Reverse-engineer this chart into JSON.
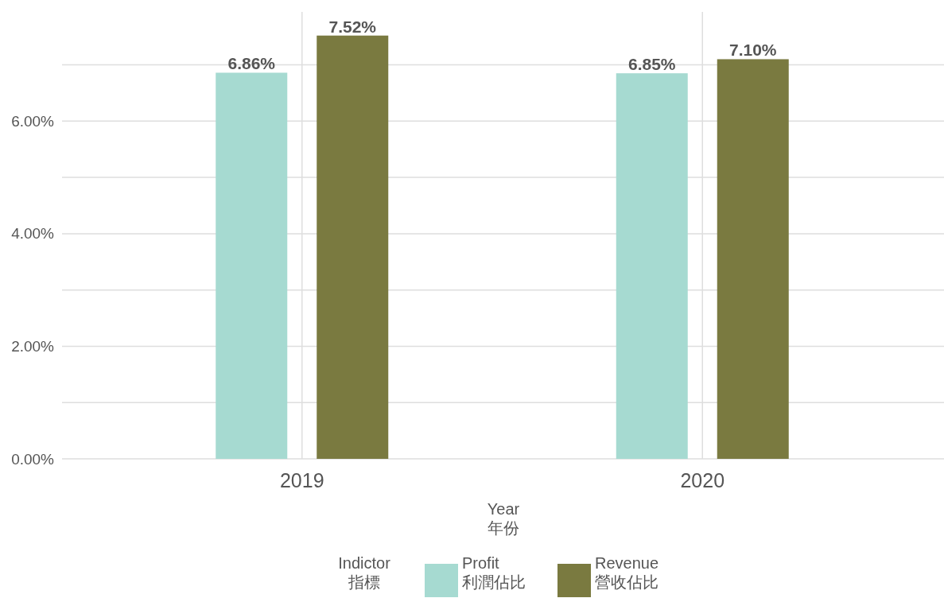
{
  "chart_data": {
    "type": "bar",
    "categories": [
      "2019",
      "2020"
    ],
    "series": [
      {
        "name": "Profit\n利潤佔比",
        "color": "#a6dad1",
        "values": [
          6.86,
          6.85
        ],
        "value_labels": [
          "6.86%",
          "6.85%"
        ]
      },
      {
        "name": "Revenue\n營收佔比",
        "color": "#7a7a40",
        "values": [
          7.52,
          7.1
        ],
        "value_labels": [
          "7.52%",
          "7.10%"
        ]
      }
    ],
    "xlabel": "Year\n年份",
    "legend_title": "Indictor\n指標",
    "legend": "bottom",
    "ylim": [
      0,
      7.94
    ],
    "yticks": [
      {
        "value": 0,
        "label": "0.00%"
      },
      {
        "value": 1,
        "label": null
      },
      {
        "value": 2,
        "label": "2.00%"
      },
      {
        "value": 3,
        "label": null
      },
      {
        "value": 4,
        "label": "4.00%"
      },
      {
        "value": 5,
        "label": null
      },
      {
        "value": 6,
        "label": "6.00%"
      },
      {
        "value": 7,
        "label": null
      }
    ],
    "grid": true
  }
}
